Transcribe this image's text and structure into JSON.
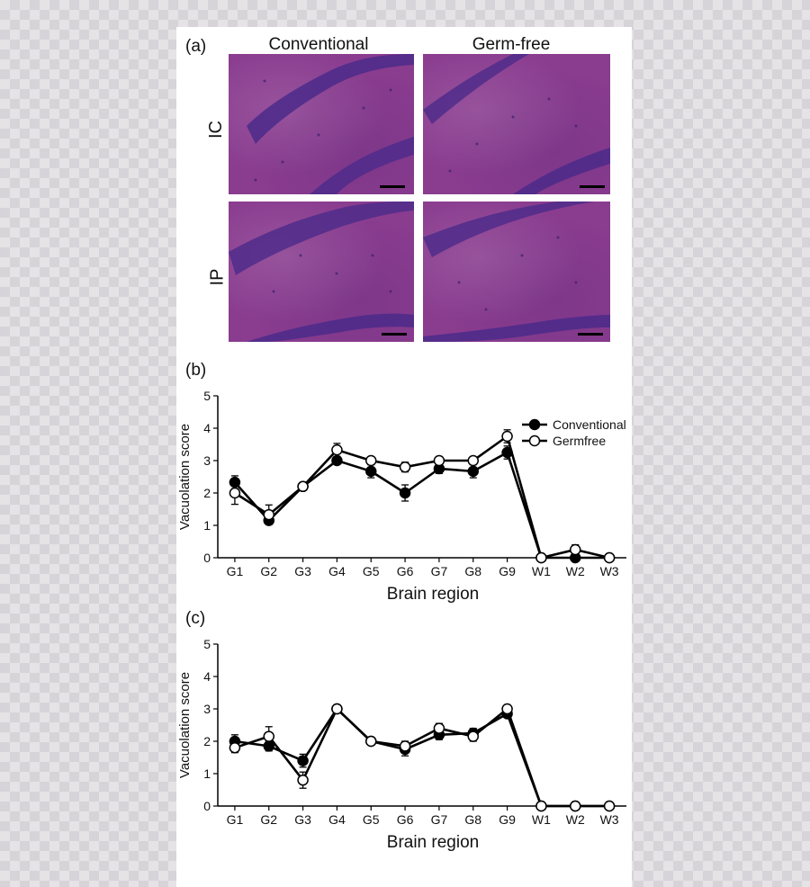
{
  "panel_a": {
    "label": "(a)",
    "columns": [
      "Conventional",
      "Germ-free"
    ],
    "rows": [
      "IC",
      "IP"
    ]
  },
  "panel_b": {
    "label": "(b)"
  },
  "panel_c": {
    "label": "(c)"
  },
  "colors": {
    "tissue": "#8a3c8f",
    "layer": "#4b2a8a",
    "conventional": "#000000",
    "germfree": "#ffffff"
  },
  "chart_data": [
    {
      "type": "line",
      "panel": "(b)",
      "categories": [
        "G1",
        "G2",
        "G3",
        "G4",
        "G5",
        "G6",
        "G7",
        "G8",
        "G9",
        "W1",
        "W2",
        "W3"
      ],
      "ylabel": "Vacuolation score",
      "xlabel": "Brain region",
      "ylim": [
        0,
        5
      ],
      "yticks": [
        "0",
        "1",
        "2",
        "3",
        "4",
        "5"
      ],
      "legend_position": "top-right",
      "series": [
        {
          "name": "Conventional",
          "marker": "filled-circle",
          "values": [
            2.33,
            1.15,
            2.2,
            3.0,
            2.67,
            2.0,
            2.75,
            2.67,
            3.25,
            0,
            0,
            0
          ],
          "errors": [
            0.2,
            0.1,
            0.05,
            0.05,
            0.2,
            0.25,
            0.15,
            0.2,
            0.2,
            0,
            0.05,
            0
          ]
        },
        {
          "name": "Germfree",
          "marker": "open-circle",
          "values": [
            2.0,
            1.33,
            2.2,
            3.33,
            3.0,
            2.8,
            3.0,
            3.0,
            3.75,
            0,
            0.25,
            0
          ],
          "errors": [
            0.35,
            0.3,
            0.05,
            0.2,
            0.05,
            0.15,
            0.05,
            0.05,
            0.2,
            0,
            0.15,
            0
          ]
        }
      ]
    },
    {
      "type": "line",
      "panel": "(c)",
      "categories": [
        "G1",
        "G2",
        "G3",
        "G4",
        "G5",
        "G6",
        "G7",
        "G8",
        "G9",
        "W1",
        "W2",
        "W3"
      ],
      "ylabel": "Vacuolation score",
      "xlabel": "Brain region",
      "ylim": [
        0,
        5
      ],
      "yticks": [
        "0",
        "1",
        "2",
        "3",
        "4",
        "5"
      ],
      "series": [
        {
          "name": "Conventional",
          "marker": "filled-circle",
          "values": [
            2.0,
            1.85,
            1.4,
            3.0,
            2.0,
            1.75,
            2.2,
            2.25,
            2.85,
            0,
            0,
            0
          ],
          "errors": [
            0.2,
            0.15,
            0.2,
            0.05,
            0.05,
            0.2,
            0.15,
            0.15,
            0.1,
            0,
            0,
            0
          ]
        },
        {
          "name": "Germfree",
          "marker": "open-circle",
          "values": [
            1.8,
            2.15,
            0.8,
            3.0,
            2.0,
            1.85,
            2.4,
            2.15,
            3.0,
            0,
            0,
            0
          ],
          "errors": [
            0.15,
            0.3,
            0.25,
            0.05,
            0.05,
            0.15,
            0.15,
            0.15,
            0.05,
            0,
            0,
            0
          ]
        }
      ]
    }
  ]
}
